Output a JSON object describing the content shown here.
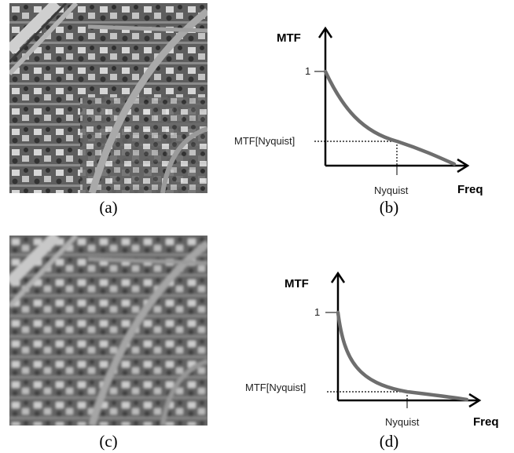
{
  "panels": [
    {
      "caption": "(a)"
    },
    {
      "caption": "(b)"
    },
    {
      "caption": "(c)"
    },
    {
      "caption": "(d)"
    }
  ],
  "plots": [
    {
      "y_axis_label": "MTF",
      "x_axis_label": "Freq",
      "one_label": "1",
      "mtf_nyquist_label": "MTF[Nyquist]",
      "nyquist_label": "Nyquist",
      "curve_color": "#6e6e6e"
    },
    {
      "y_axis_label": "MTF",
      "x_axis_label": "Freq",
      "one_label": "1",
      "mtf_nyquist_label": "MTF[Nyquist]",
      "nyquist_label": "Nyquist",
      "curve_color": "#6e6e6e"
    }
  ]
}
